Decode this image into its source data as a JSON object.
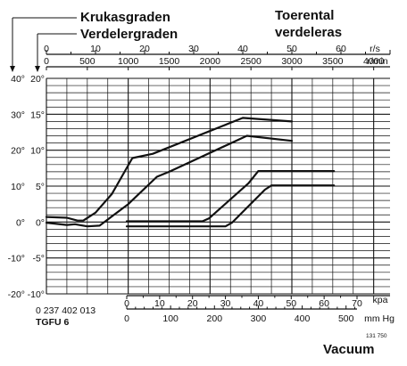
{
  "chart_data": {
    "type": "line",
    "labels": {
      "crank_degrees": "Krukasgraden",
      "distributor_degrees": "Verdelergraden",
      "speed_title_line1": "Toerental",
      "speed_title_line2": "verdeleras",
      "part_number": "0 237 402 013",
      "part_code": "TGFU 6",
      "vacuum": "Vacuum",
      "ref_code": "131 750"
    },
    "axes": {
      "crank_ticks": [
        "40°",
        "30°",
        "20°",
        "10°",
        "0°",
        "-10°",
        "-20°"
      ],
      "distributor_ticks": [
        "20°",
        "15°",
        "10°",
        "5°",
        "0°",
        "-5°",
        "-10°"
      ],
      "distributor_range": [
        -10,
        20
      ],
      "rps_ticks": [
        "0",
        "10",
        "20",
        "30",
        "40",
        "50",
        "60"
      ],
      "rps_unit": "r/s",
      "rpm_ticks": [
        "0",
        "500",
        "1000",
        "1500",
        "2000",
        "2500",
        "3000",
        "3500",
        "4000"
      ],
      "rpm_unit": "r/min",
      "rpm_range": [
        0,
        4200
      ],
      "kpa_ticks": [
        "0",
        "10",
        "20",
        "30",
        "40",
        "50",
        "60",
        "70"
      ],
      "kpa_unit": "kpa",
      "kpa_range": [
        0,
        70
      ],
      "mmhg_ticks": [
        "0",
        "100",
        "200",
        "300",
        "400",
        "500"
      ],
      "mmhg_unit": "mm Hg",
      "mmhg_range": [
        0,
        525
      ],
      "grid": true
    },
    "series": [
      {
        "group": "centrifugal advance, upper limit",
        "x_unit": "r/min",
        "x": [
          0,
          250,
          380,
          450,
          600,
          800,
          1050,
          1300,
          2400,
          3000
        ],
        "y": [
          0.7,
          0.6,
          0.2,
          0.2,
          1.3,
          3.9,
          8.9,
          9.5,
          14.5,
          14.0
        ]
      },
      {
        "group": "centrifugal advance, lower limit",
        "x_unit": "r/min",
        "x": [
          0,
          250,
          350,
          500,
          650,
          1000,
          1350,
          1500,
          2450,
          3000
        ],
        "y": [
          -0.1,
          -0.4,
          -0.3,
          -0.6,
          -0.5,
          2.5,
          6.3,
          7.0,
          12.0,
          11.3
        ]
      },
      {
        "group": "vacuum advance, upper limit",
        "x_unit": "kpa",
        "x": [
          0,
          23,
          25,
          37,
          40,
          52,
          63
        ],
        "y": [
          0.1,
          0.1,
          0.5,
          5.4,
          7.1,
          7.1,
          7.1
        ]
      },
      {
        "group": "vacuum advance, lower limit",
        "x_unit": "kpa",
        "x": [
          0,
          30,
          32,
          42,
          44,
          52,
          63
        ],
        "y": [
          -0.6,
          -0.6,
          -0.1,
          4.5,
          5.1,
          5.1,
          5.1
        ]
      }
    ]
  }
}
